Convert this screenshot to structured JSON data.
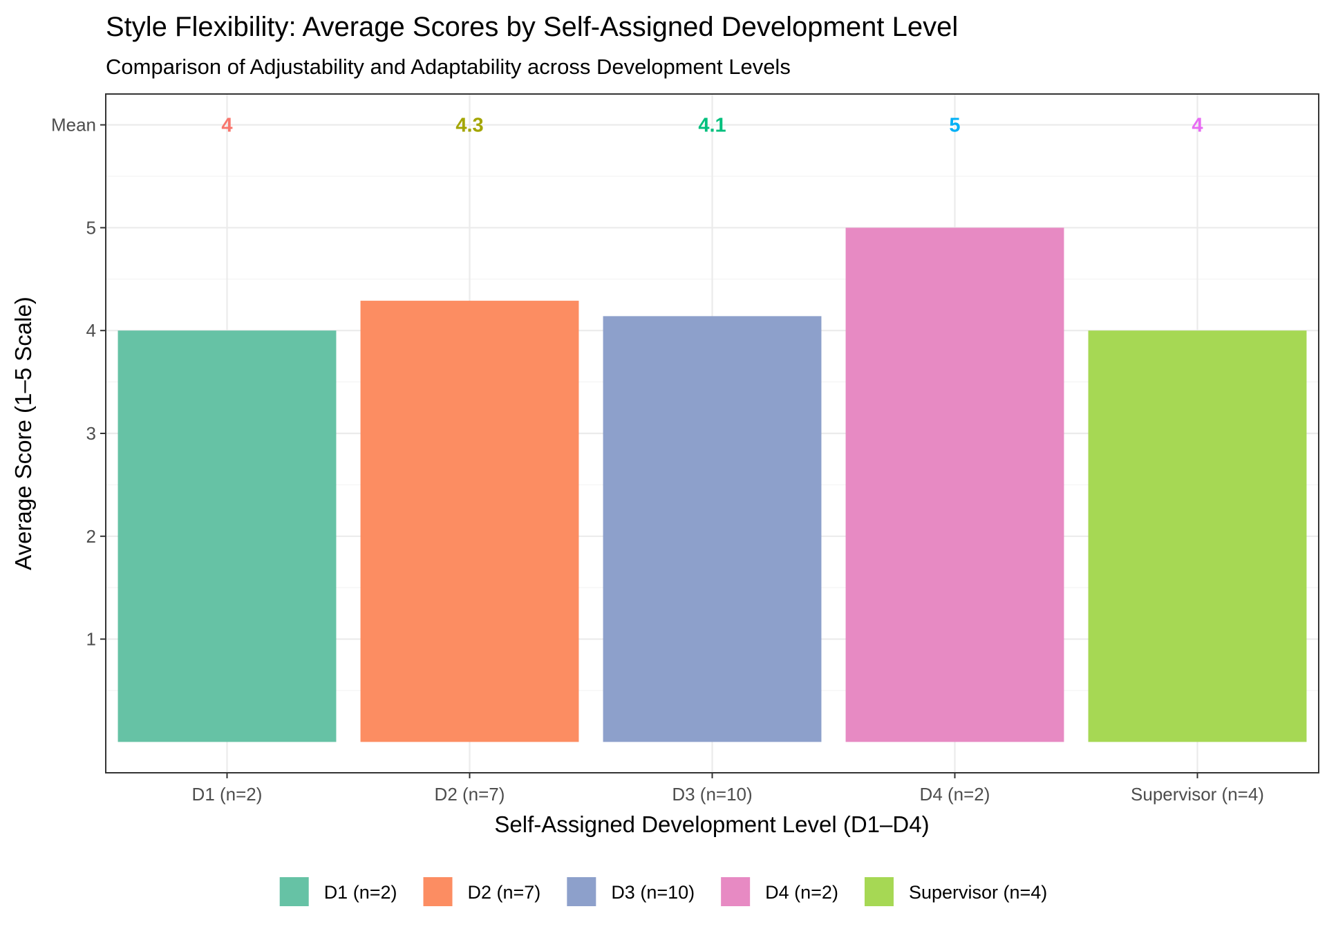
{
  "chart_data": {
    "type": "bar",
    "title": "Style Flexibility: Average Scores by Self-Assigned Development Level",
    "subtitle": "Comparison of Adjustability and Adaptability across Development Levels",
    "xlabel": "Self-Assigned Development Level (D1–D4)",
    "ylabel": "Average Score (1–5 Scale)",
    "categories": [
      "D1 (n=2)",
      "D2 (n=7)",
      "D3 (n=10)",
      "D4 (n=2)",
      "Supervisor (n=4)"
    ],
    "values": [
      4.0,
      4.29,
      4.14,
      5.0,
      4.0
    ],
    "mean_labels": [
      "4",
      "4.3",
      "4.1",
      "5",
      "4"
    ],
    "mean_row_label": "Mean",
    "yticks": [
      1,
      2,
      3,
      4,
      5
    ],
    "ylim": [
      -0.3,
      6.3
    ],
    "grid": true,
    "legend_position": "bottom",
    "bar_colors": [
      "#66c2a5",
      "#fc8d62",
      "#8da0cb",
      "#e78ac3",
      "#a6d854"
    ],
    "label_colors": [
      "#f8766d",
      "#a3a500",
      "#00bf7d",
      "#00b0f6",
      "#e76bf3"
    ],
    "panel_border": "#333333"
  }
}
